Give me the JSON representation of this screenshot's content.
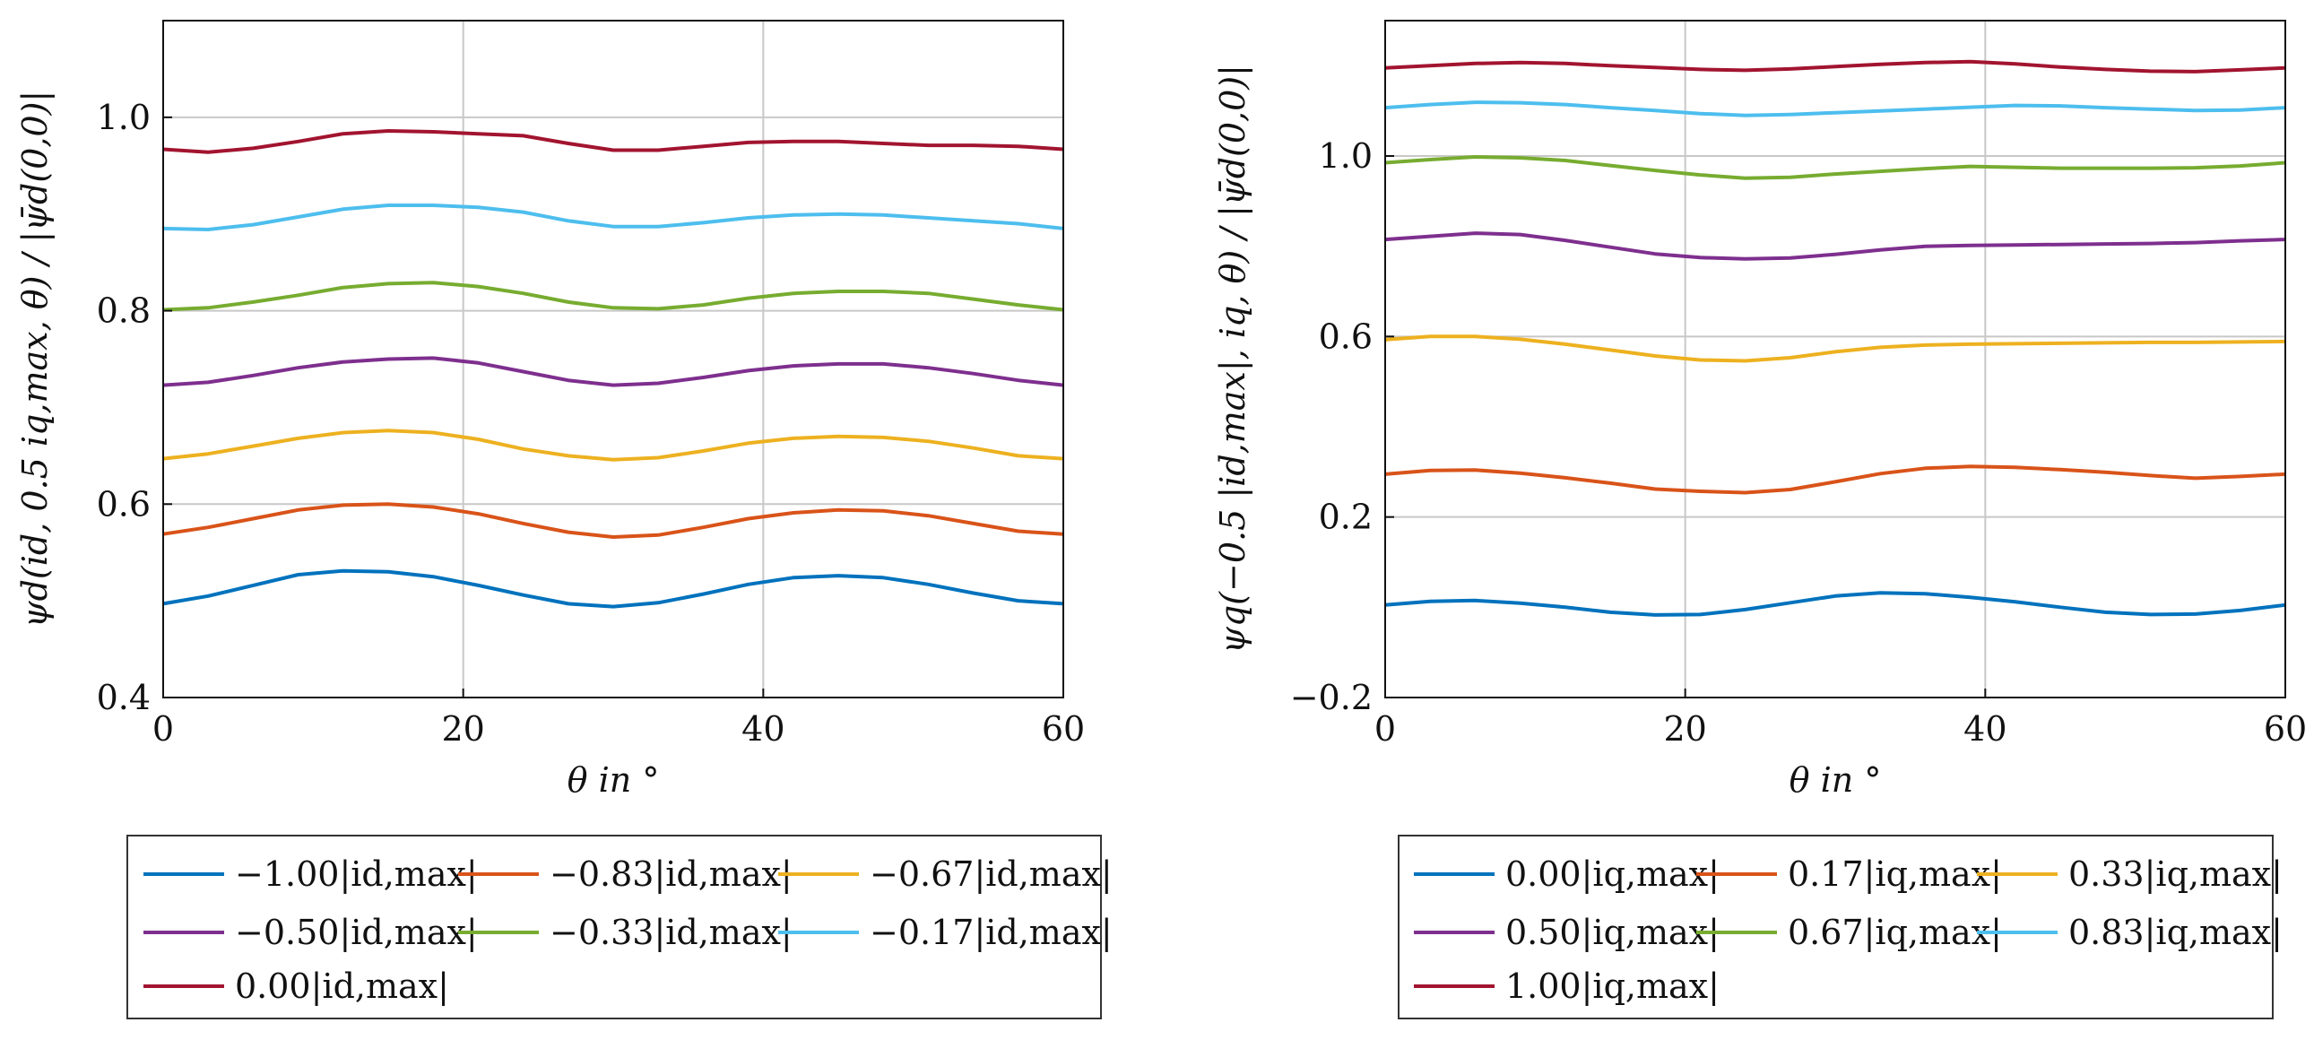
{
  "chart_data": [
    {
      "type": "line",
      "title": "",
      "xlabel": "θ in °",
      "ylabel": "ψd(id, 0.5 iq,max, θ) / |ψ̄d(0,0)|",
      "xlim": [
        0,
        60
      ],
      "ylim": [
        0.4,
        1.1
      ],
      "xticks": [
        "0",
        "20",
        "40",
        "60"
      ],
      "yticks": [
        "0.4",
        "0.6",
        "0.8",
        "1.0"
      ],
      "ytick_values": [
        0.4,
        0.6,
        0.8,
        1.0
      ],
      "grid": true,
      "legend_position": "below",
      "x": [
        0,
        3,
        6,
        9,
        12,
        15,
        18,
        21,
        24,
        27,
        30,
        33,
        36,
        39,
        42,
        45,
        48,
        51,
        54,
        57,
        60
      ],
      "series": [
        {
          "name": "−1.00|id,max|",
          "color": "#0072BD",
          "values": [
            0.497,
            0.505,
            0.516,
            0.527,
            0.531,
            0.53,
            0.525,
            0.516,
            0.506,
            0.497,
            0.494,
            0.498,
            0.507,
            0.517,
            0.524,
            0.526,
            0.524,
            0.517,
            0.508,
            0.5,
            0.497
          ]
        },
        {
          "name": "−0.83|id,max|",
          "color": "#D95319",
          "values": [
            0.569,
            0.576,
            0.585,
            0.594,
            0.599,
            0.6,
            0.597,
            0.59,
            0.58,
            0.571,
            0.566,
            0.568,
            0.576,
            0.585,
            0.591,
            0.594,
            0.593,
            0.588,
            0.58,
            0.572,
            0.569
          ]
        },
        {
          "name": "−0.67|id,max|",
          "color": "#EDB120",
          "values": [
            0.647,
            0.652,
            0.66,
            0.668,
            0.674,
            0.676,
            0.674,
            0.667,
            0.657,
            0.65,
            0.646,
            0.648,
            0.655,
            0.663,
            0.668,
            0.67,
            0.669,
            0.665,
            0.658,
            0.65,
            0.647
          ]
        },
        {
          "name": "−0.50|id,max|",
          "color": "#7E2F8E",
          "values": [
            0.723,
            0.726,
            0.733,
            0.741,
            0.747,
            0.75,
            0.751,
            0.746,
            0.737,
            0.728,
            0.723,
            0.725,
            0.731,
            0.738,
            0.743,
            0.745,
            0.745,
            0.741,
            0.735,
            0.728,
            0.723
          ]
        },
        {
          "name": "−0.33|id,max|",
          "color": "#77AC30",
          "values": [
            0.801,
            0.803,
            0.809,
            0.816,
            0.824,
            0.828,
            0.829,
            0.825,
            0.818,
            0.809,
            0.803,
            0.802,
            0.806,
            0.813,
            0.818,
            0.82,
            0.82,
            0.818,
            0.812,
            0.806,
            0.801
          ]
        },
        {
          "name": "−0.17|id,max|",
          "color": "#4DBEEE",
          "values": [
            0.885,
            0.884,
            0.889,
            0.897,
            0.905,
            0.909,
            0.909,
            0.907,
            0.902,
            0.893,
            0.887,
            0.887,
            0.891,
            0.896,
            0.899,
            0.9,
            0.899,
            0.896,
            0.893,
            0.89,
            0.885
          ]
        },
        {
          "name": "0.00|id,max|",
          "color": "#A2142F",
          "values": [
            0.967,
            0.964,
            0.968,
            0.975,
            0.983,
            0.986,
            0.985,
            0.983,
            0.981,
            0.973,
            0.966,
            0.966,
            0.97,
            0.974,
            0.975,
            0.975,
            0.973,
            0.971,
            0.971,
            0.97,
            0.967
          ]
        }
      ]
    },
    {
      "type": "line",
      "title": "",
      "xlabel": "θ in °",
      "ylabel": "ψq(−0.5 |id,max|, iq, θ) / |ψ̄d(0,0)|",
      "xlim": [
        0,
        60
      ],
      "ylim": [
        -0.2,
        1.3
      ],
      "xticks": [
        "0",
        "20",
        "40",
        "60"
      ],
      "yticks": [
        "−0.2",
        "0.2",
        "0.6",
        "1.0"
      ],
      "ytick_values": [
        -0.2,
        0.2,
        0.6,
        1.0
      ],
      "grid": true,
      "legend_position": "below",
      "x": [
        0,
        3,
        6,
        9,
        12,
        15,
        18,
        21,
        24,
        27,
        30,
        33,
        36,
        39,
        42,
        45,
        48,
        51,
        54,
        57,
        60
      ],
      "series": [
        {
          "name": "0.00|iq,max|",
          "color": "#0072BD",
          "values": [
            0.005,
            0.013,
            0.015,
            0.009,
            0.0,
            -0.011,
            -0.017,
            -0.016,
            -0.005,
            0.01,
            0.025,
            0.032,
            0.03,
            0.022,
            0.012,
            0.0,
            -0.011,
            -0.016,
            -0.015,
            -0.007,
            0.005
          ]
        },
        {
          "name": "0.17|iq,max|",
          "color": "#D95319",
          "values": [
            0.295,
            0.303,
            0.304,
            0.297,
            0.287,
            0.275,
            0.262,
            0.257,
            0.254,
            0.261,
            0.278,
            0.296,
            0.308,
            0.312,
            0.31,
            0.305,
            0.299,
            0.292,
            0.286,
            0.29,
            0.295
          ]
        },
        {
          "name": "0.33|iq,max|",
          "color": "#EDB120",
          "values": [
            0.593,
            0.6,
            0.6,
            0.594,
            0.583,
            0.57,
            0.557,
            0.548,
            0.546,
            0.553,
            0.566,
            0.576,
            0.581,
            0.583,
            0.584,
            0.585,
            0.586,
            0.587,
            0.587,
            0.588,
            0.589
          ]
        },
        {
          "name": "0.50|iq,max|",
          "color": "#7E2F8E",
          "values": [
            0.815,
            0.822,
            0.829,
            0.826,
            0.813,
            0.798,
            0.783,
            0.775,
            0.772,
            0.774,
            0.782,
            0.792,
            0.8,
            0.802,
            0.803,
            0.804,
            0.805,
            0.806,
            0.808,
            0.812,
            0.815
          ]
        },
        {
          "name": "0.67|iq,max|",
          "color": "#77AC30",
          "values": [
            0.985,
            0.992,
            0.998,
            0.996,
            0.99,
            0.979,
            0.968,
            0.958,
            0.951,
            0.953,
            0.96,
            0.966,
            0.972,
            0.977,
            0.975,
            0.973,
            0.973,
            0.973,
            0.974,
            0.978,
            0.985
          ]
        },
        {
          "name": "0.83|iq,max|",
          "color": "#4DBEEE",
          "values": [
            1.107,
            1.114,
            1.119,
            1.118,
            1.114,
            1.107,
            1.101,
            1.094,
            1.09,
            1.092,
            1.096,
            1.1,
            1.104,
            1.108,
            1.112,
            1.111,
            1.107,
            1.104,
            1.101,
            1.102,
            1.107
          ]
        },
        {
          "name": "1.00|iq,max|",
          "color": "#A2142F",
          "values": [
            1.195,
            1.2,
            1.205,
            1.207,
            1.205,
            1.2,
            1.196,
            1.192,
            1.19,
            1.193,
            1.198,
            1.203,
            1.207,
            1.209,
            1.204,
            1.197,
            1.192,
            1.188,
            1.187,
            1.191,
            1.195
          ]
        }
      ]
    }
  ]
}
